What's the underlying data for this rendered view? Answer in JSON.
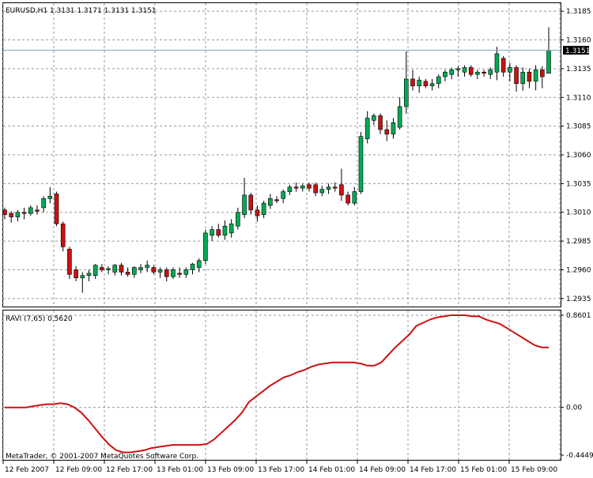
{
  "chart_data": [
    {
      "type": "candlestick",
      "title": "EURUSD,H1  1.3131 1.3171 1.3131 1.3151",
      "ylim": [
        1.2928,
        1.3192
      ],
      "grid": true,
      "y_ticks": [
        1.3185,
        1.316,
        1.3135,
        1.311,
        1.3085,
        1.306,
        1.3035,
        1.301,
        1.2985,
        1.296,
        1.2935
      ],
      "y_tick_labels": [
        "1.3185",
        "1.3160",
        "1.3135",
        "1.3110",
        "1.3085",
        "1.3060",
        "1.3035",
        "1.3010",
        "1.2985",
        "1.2960",
        "1.2935"
      ],
      "current_price": 1.3151,
      "current_price_label": "1.3151",
      "bullish_color": "#00aa55",
      "bearish_color": "#cc1111",
      "candles": [
        {
          "o": 1.3012,
          "h": 1.3014,
          "l": 1.3004,
          "c": 1.3008
        },
        {
          "o": 1.3009,
          "h": 1.3011,
          "l": 1.3001,
          "c": 1.3006
        },
        {
          "o": 1.3006,
          "h": 1.3012,
          "l": 1.3002,
          "c": 1.301
        },
        {
          "o": 1.301,
          "h": 1.3014,
          "l": 1.3004,
          "c": 1.3009
        },
        {
          "o": 1.3009,
          "h": 1.3016,
          "l": 1.3007,
          "c": 1.3014
        },
        {
          "o": 1.3012,
          "h": 1.3016,
          "l": 1.3008,
          "c": 1.3011
        },
        {
          "o": 1.3014,
          "h": 1.3024,
          "l": 1.301,
          "c": 1.3022
        },
        {
          "o": 1.3022,
          "h": 1.3032,
          "l": 1.3018,
          "c": 1.3024
        },
        {
          "o": 1.3026,
          "h": 1.3028,
          "l": 1.2998,
          "c": 1.3
        },
        {
          "o": 1.3,
          "h": 1.3002,
          "l": 1.2976,
          "c": 1.298
        },
        {
          "o": 1.2978,
          "h": 1.298,
          "l": 1.2952,
          "c": 1.2956
        },
        {
          "o": 1.296,
          "h": 1.2963,
          "l": 1.295,
          "c": 1.2953
        },
        {
          "o": 1.2953,
          "h": 1.2958,
          "l": 1.294,
          "c": 1.2955
        },
        {
          "o": 1.2955,
          "h": 1.296,
          "l": 1.295,
          "c": 1.2957
        },
        {
          "o": 1.2955,
          "h": 1.2965,
          "l": 1.2952,
          "c": 1.2964
        },
        {
          "o": 1.2962,
          "h": 1.2965,
          "l": 1.2958,
          "c": 1.296
        },
        {
          "o": 1.296,
          "h": 1.2963,
          "l": 1.2956,
          "c": 1.2961
        },
        {
          "o": 1.2958,
          "h": 1.2965,
          "l": 1.2955,
          "c": 1.2964
        },
        {
          "o": 1.2964,
          "h": 1.2966,
          "l": 1.2955,
          "c": 1.2958
        },
        {
          "o": 1.2958,
          "h": 1.2962,
          "l": 1.2954,
          "c": 1.2956
        },
        {
          "o": 1.2956,
          "h": 1.2963,
          "l": 1.2953,
          "c": 1.2962
        },
        {
          "o": 1.296,
          "h": 1.2965,
          "l": 1.2957,
          "c": 1.2962
        },
        {
          "o": 1.2962,
          "h": 1.2968,
          "l": 1.2958,
          "c": 1.2964
        },
        {
          "o": 1.2962,
          "h": 1.2964,
          "l": 1.2956,
          "c": 1.2958
        },
        {
          "o": 1.2958,
          "h": 1.2962,
          "l": 1.2953,
          "c": 1.296
        },
        {
          "o": 1.296,
          "h": 1.2962,
          "l": 1.295,
          "c": 1.2954
        },
        {
          "o": 1.2954,
          "h": 1.2962,
          "l": 1.2952,
          "c": 1.296
        },
        {
          "o": 1.2957,
          "h": 1.2962,
          "l": 1.2953,
          "c": 1.2956
        },
        {
          "o": 1.2956,
          "h": 1.2962,
          "l": 1.2953,
          "c": 1.296
        },
        {
          "o": 1.296,
          "h": 1.2966,
          "l": 1.2956,
          "c": 1.2965
        },
        {
          "o": 1.2962,
          "h": 1.297,
          "l": 1.2958,
          "c": 1.2968
        },
        {
          "o": 1.2968,
          "h": 1.2995,
          "l": 1.2965,
          "c": 1.2992
        },
        {
          "o": 1.299,
          "h": 1.2998,
          "l": 1.2985,
          "c": 1.2995
        },
        {
          "o": 1.2995,
          "h": 1.3,
          "l": 1.2988,
          "c": 1.299
        },
        {
          "o": 1.299,
          "h": 1.3003,
          "l": 1.2986,
          "c": 1.2998
        },
        {
          "o": 1.2992,
          "h": 1.3004,
          "l": 1.2988,
          "c": 1.3
        },
        {
          "o": 1.2998,
          "h": 1.3014,
          "l": 1.2995,
          "c": 1.301
        },
        {
          "o": 1.3008,
          "h": 1.304,
          "l": 1.3005,
          "c": 1.3025
        },
        {
          "o": 1.3025,
          "h": 1.3027,
          "l": 1.3008,
          "c": 1.3012
        },
        {
          "o": 1.3012,
          "h": 1.3016,
          "l": 1.3002,
          "c": 1.3007
        },
        {
          "o": 1.3008,
          "h": 1.302,
          "l": 1.3005,
          "c": 1.3018
        },
        {
          "o": 1.3016,
          "h": 1.3026,
          "l": 1.3013,
          "c": 1.3022
        },
        {
          "o": 1.3021,
          "h": 1.3024,
          "l": 1.3018,
          "c": 1.302
        },
        {
          "o": 1.3022,
          "h": 1.303,
          "l": 1.3018,
          "c": 1.3028
        },
        {
          "o": 1.3028,
          "h": 1.3034,
          "l": 1.3025,
          "c": 1.3032
        },
        {
          "o": 1.3032,
          "h": 1.3036,
          "l": 1.3028,
          "c": 1.3031
        },
        {
          "o": 1.3031,
          "h": 1.3035,
          "l": 1.3028,
          "c": 1.3033
        },
        {
          "o": 1.3034,
          "h": 1.3036,
          "l": 1.3028,
          "c": 1.3031
        },
        {
          "o": 1.3034,
          "h": 1.3036,
          "l": 1.3024,
          "c": 1.3027
        },
        {
          "o": 1.3027,
          "h": 1.3033,
          "l": 1.3024,
          "c": 1.303
        },
        {
          "o": 1.303,
          "h": 1.3035,
          "l": 1.3026,
          "c": 1.3032
        },
        {
          "o": 1.3032,
          "h": 1.3036,
          "l": 1.3028,
          "c": 1.3031
        },
        {
          "o": 1.3034,
          "h": 1.3048,
          "l": 1.302,
          "c": 1.3025
        },
        {
          "o": 1.3025,
          "h": 1.3028,
          "l": 1.3016,
          "c": 1.3018
        },
        {
          "o": 1.3018,
          "h": 1.3032,
          "l": 1.3016,
          "c": 1.3028
        },
        {
          "o": 1.3028,
          "h": 1.308,
          "l": 1.3026,
          "c": 1.3076
        },
        {
          "o": 1.3074,
          "h": 1.3098,
          "l": 1.307,
          "c": 1.3092
        },
        {
          "o": 1.309,
          "h": 1.3096,
          "l": 1.3086,
          "c": 1.3094
        },
        {
          "o": 1.3094,
          "h": 1.3096,
          "l": 1.3078,
          "c": 1.3082
        },
        {
          "o": 1.3082,
          "h": 1.309,
          "l": 1.3072,
          "c": 1.3078
        },
        {
          "o": 1.3078,
          "h": 1.3092,
          "l": 1.3074,
          "c": 1.3088
        },
        {
          "o": 1.3084,
          "h": 1.311,
          "l": 1.3082,
          "c": 1.3102
        },
        {
          "o": 1.3102,
          "h": 1.315,
          "l": 1.3096,
          "c": 1.3126
        },
        {
          "o": 1.3126,
          "h": 1.3134,
          "l": 1.3116,
          "c": 1.312
        },
        {
          "o": 1.312,
          "h": 1.3128,
          "l": 1.3114,
          "c": 1.3125
        },
        {
          "o": 1.3124,
          "h": 1.3126,
          "l": 1.3118,
          "c": 1.312
        },
        {
          "o": 1.312,
          "h": 1.3126,
          "l": 1.3116,
          "c": 1.3122
        },
        {
          "o": 1.3122,
          "h": 1.313,
          "l": 1.3118,
          "c": 1.3128
        },
        {
          "o": 1.3128,
          "h": 1.3134,
          "l": 1.3124,
          "c": 1.3132
        },
        {
          "o": 1.313,
          "h": 1.3136,
          "l": 1.3126,
          "c": 1.3134
        },
        {
          "o": 1.3134,
          "h": 1.3137,
          "l": 1.3128,
          "c": 1.3135
        },
        {
          "o": 1.3132,
          "h": 1.3138,
          "l": 1.3128,
          "c": 1.3136
        },
        {
          "o": 1.3136,
          "h": 1.3138,
          "l": 1.3128,
          "c": 1.313
        },
        {
          "o": 1.313,
          "h": 1.3134,
          "l": 1.3126,
          "c": 1.3132
        },
        {
          "o": 1.3132,
          "h": 1.3134,
          "l": 1.3128,
          "c": 1.3131
        },
        {
          "o": 1.313,
          "h": 1.3136,
          "l": 1.3126,
          "c": 1.3134
        },
        {
          "o": 1.3132,
          "h": 1.3154,
          "l": 1.3125,
          "c": 1.3148
        },
        {
          "o": 1.3144,
          "h": 1.3146,
          "l": 1.3128,
          "c": 1.3132
        },
        {
          "o": 1.3132,
          "h": 1.314,
          "l": 1.3124,
          "c": 1.3136
        },
        {
          "o": 1.3136,
          "h": 1.3138,
          "l": 1.3115,
          "c": 1.3122
        },
        {
          "o": 1.3122,
          "h": 1.3136,
          "l": 1.3116,
          "c": 1.3132
        },
        {
          "o": 1.3132,
          "h": 1.3135,
          "l": 1.3118,
          "c": 1.3124
        },
        {
          "o": 1.3124,
          "h": 1.3138,
          "l": 1.3116,
          "c": 1.3134
        },
        {
          "o": 1.3134,
          "h": 1.3137,
          "l": 1.3118,
          "c": 1.3128
        },
        {
          "o": 1.3131,
          "h": 1.3171,
          "l": 1.3131,
          "c": 1.3151
        }
      ]
    },
    {
      "type": "line",
      "title": "RAVI (7,65) 0.5620",
      "ylim": [
        -0.4449,
        0.8601
      ],
      "y_tick_labels": [
        "0.8601",
        "0.00",
        "-0.4449"
      ],
      "y_ticks": [
        0.8601,
        0.0,
        -0.4449
      ],
      "series": [
        {
          "color": "#cc1111",
          "values": [
            0.0,
            0.0,
            0.0,
            0.0,
            0.01,
            0.02,
            0.03,
            0.03,
            0.04,
            0.03,
            0.0,
            -0.05,
            -0.12,
            -0.2,
            -0.28,
            -0.35,
            -0.4,
            -0.42,
            -0.42,
            -0.41,
            -0.4,
            -0.38,
            -0.37,
            -0.36,
            -0.35,
            -0.35,
            -0.35,
            -0.35,
            -0.35,
            -0.34,
            -0.3,
            -0.24,
            -0.18,
            -0.12,
            -0.05,
            0.05,
            0.1,
            0.15,
            0.2,
            0.24,
            0.28,
            0.3,
            0.33,
            0.35,
            0.38,
            0.4,
            0.41,
            0.42,
            0.42,
            0.42,
            0.42,
            0.41,
            0.39,
            0.39,
            0.42,
            0.49,
            0.56,
            0.62,
            0.68,
            0.76,
            0.79,
            0.82,
            0.84,
            0.85,
            0.86,
            0.86,
            0.86,
            0.85,
            0.85,
            0.82,
            0.8,
            0.78,
            0.74,
            0.7,
            0.66,
            0.62,
            0.58,
            0.56,
            0.56
          ]
        }
      ]
    }
  ],
  "x_axis": {
    "tick_labels": [
      "12 Feb 2007",
      "12 Feb 09:00",
      "12 Feb 17:00",
      "13 Feb 01:00",
      "13 Feb 09:00",
      "13 Feb 17:00",
      "14 Feb 01:00",
      "14 Feb 09:00",
      "14 Feb 17:00",
      "15 Feb 01:00",
      "15 Feb 09:00"
    ]
  },
  "footer_text": "MetaTrader, © 2001-2007 MetaQuotes Software Corp."
}
